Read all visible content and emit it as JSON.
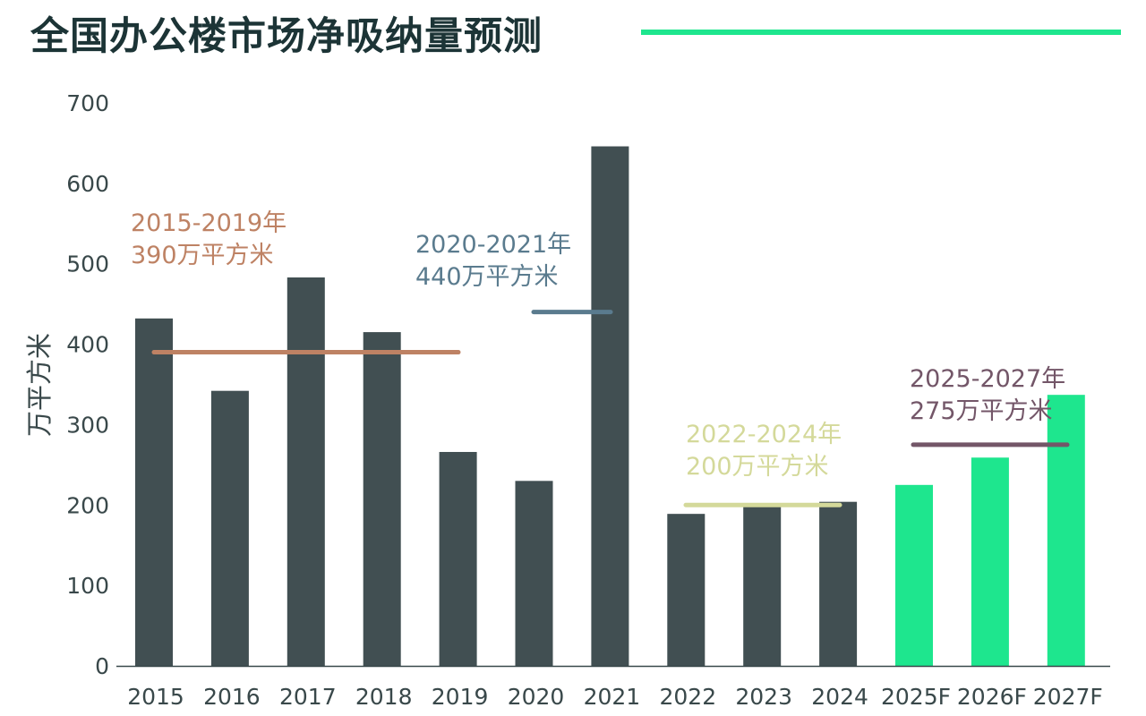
{
  "title": "全国办公楼市场净吸纳量预测",
  "chart_data": {
    "type": "bar",
    "title": "全国办公楼市场净吸纳量预测",
    "ylabel": "万平方米",
    "xlabel": "",
    "ylim": [
      0,
      700
    ],
    "yticks": [
      0,
      100,
      200,
      300,
      400,
      500,
      600,
      700
    ],
    "categories": [
      "2015",
      "2016",
      "2017",
      "2018",
      "2019",
      "2020",
      "2021",
      "2022",
      "2023",
      "2024",
      "2025F",
      "2026F",
      "2027F"
    ],
    "values": [
      432,
      342,
      483,
      415,
      266,
      230,
      646,
      189,
      202,
      204,
      225,
      259,
      337
    ],
    "bar_colors": {
      "actual": "#414f52",
      "forecast": "#1ee68e"
    },
    "forecast_categories": [
      "2025F",
      "2026F",
      "2027F"
    ],
    "grid": false,
    "legend": "none",
    "annotations": [
      {
        "period": "2015-2019年",
        "value_text": "390万平方米",
        "average": 390,
        "from": "2015",
        "to": "2019",
        "color": "#be8264"
      },
      {
        "period": "2020-2021年",
        "value_text": "440万平方米",
        "average": 440,
        "from": "2020",
        "to": "2021",
        "color": "#5a7b8e"
      },
      {
        "period": "2022-2024年",
        "value_text": "200万平方米",
        "average": 200,
        "from": "2022",
        "to": "2024",
        "color": "#d4d99a"
      },
      {
        "period": "2025-2027年",
        "value_text": "275万平方米",
        "average": 275,
        "from": "2025F",
        "to": "2027F",
        "color": "#735668"
      }
    ]
  }
}
